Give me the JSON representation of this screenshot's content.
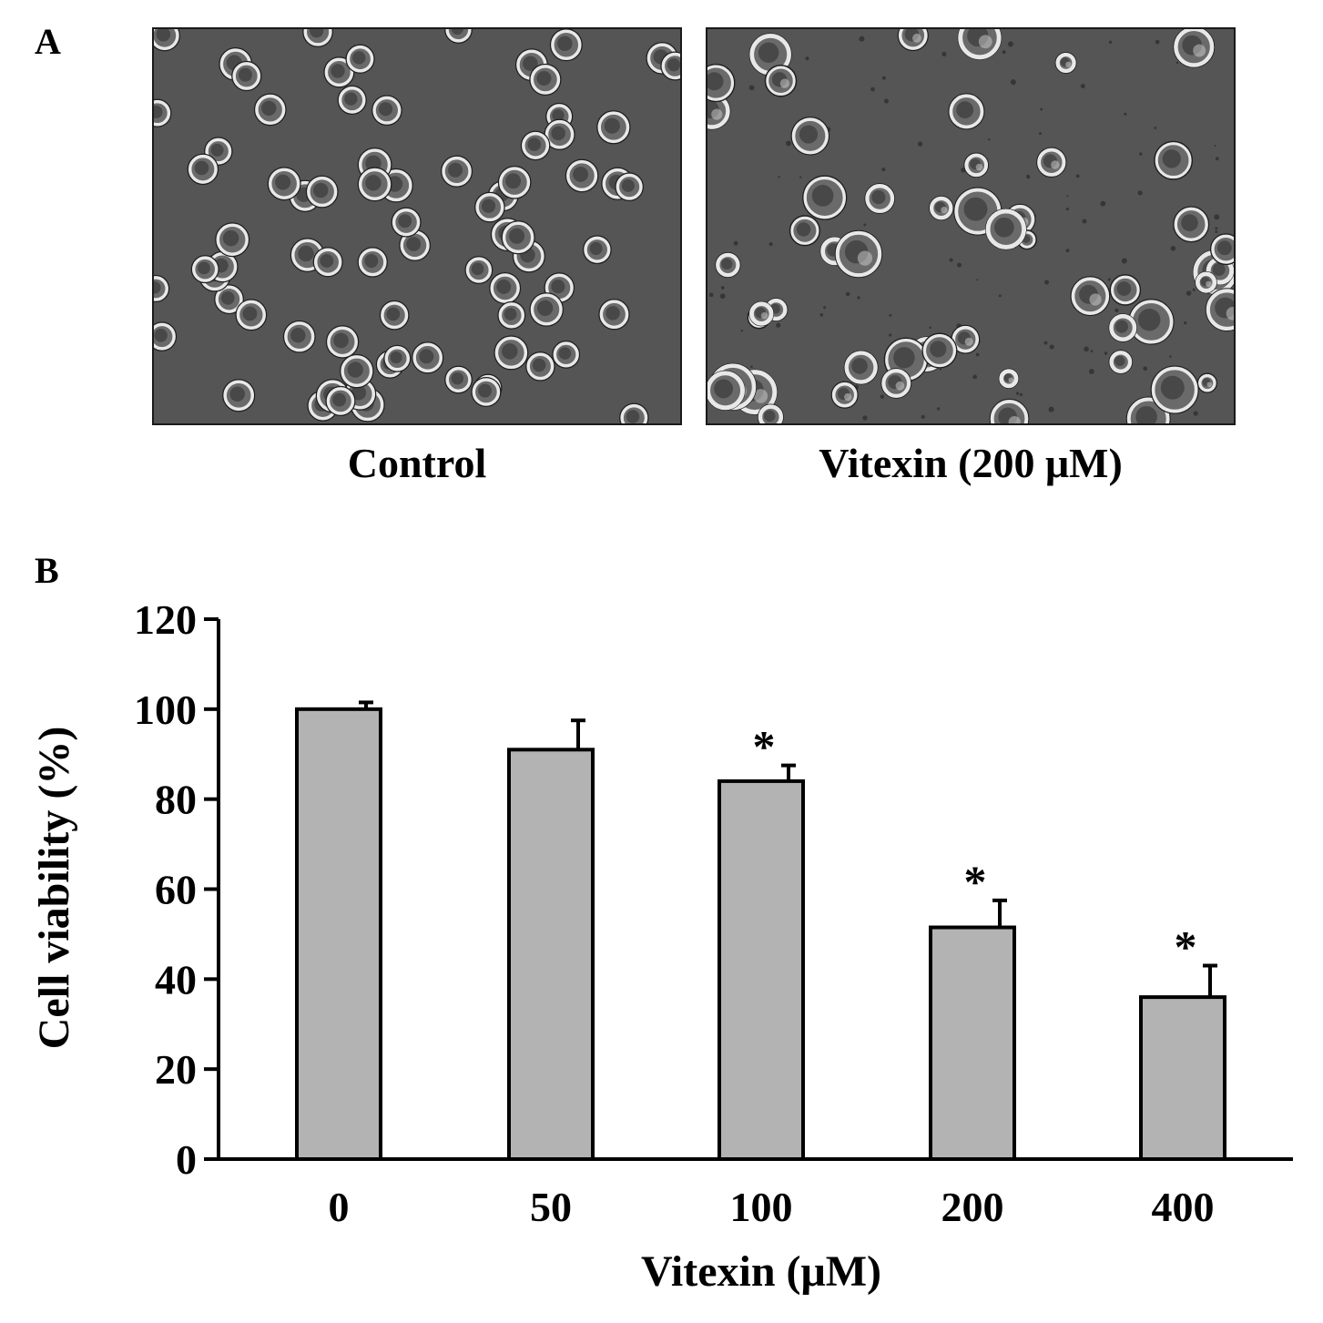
{
  "panels": {
    "a": {
      "letter": "A"
    },
    "b": {
      "letter": "B"
    }
  },
  "micrographs": [
    {
      "caption": "Control"
    },
    {
      "caption": "Vitexin (200 μM)"
    }
  ],
  "colors": {
    "bar_fill": "#b3b3b3",
    "bar_stroke": "#000000",
    "micrograph_background": "#555555"
  },
  "chart_data": {
    "type": "bar",
    "categories": [
      "0",
      "50",
      "100",
      "200",
      "400"
    ],
    "values": [
      100,
      91,
      84,
      51.5,
      36
    ],
    "errors": [
      1.5,
      6.5,
      3.5,
      6,
      7
    ],
    "significance": [
      "",
      "",
      "*",
      "*",
      "*"
    ],
    "xlabel": "Vitexin (μM)",
    "ylabel": "Cell viability (%)",
    "ylim": [
      0,
      120
    ],
    "yticks": [
      0,
      20,
      40,
      60,
      80,
      100,
      120
    ],
    "grid": false,
    "legend": "none"
  }
}
